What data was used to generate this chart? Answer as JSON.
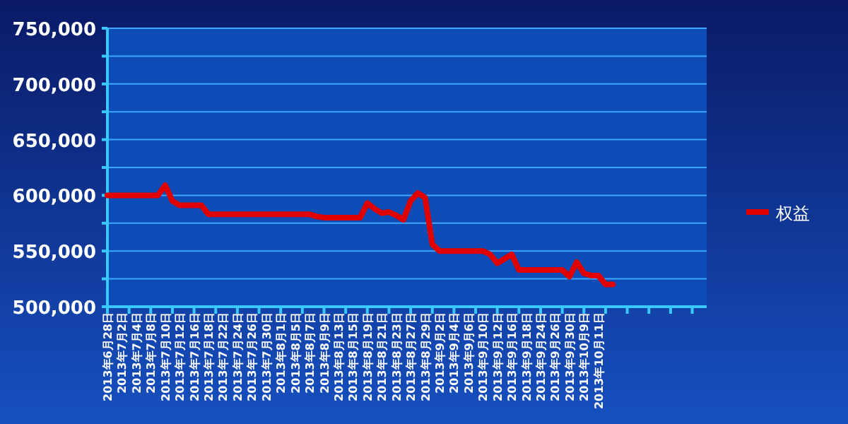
{
  "chart_data": {
    "type": "line",
    "categories": [
      "2013年6月28日",
      null,
      "2013年7月2日",
      null,
      "2013年7月4日",
      null,
      "2013年7月8日",
      null,
      "2013年7月10日",
      null,
      "2013年7月12日",
      null,
      "2013年7月16日",
      null,
      "2013年7月18日",
      null,
      "2013年7月22日",
      null,
      "2013年7月24日",
      null,
      "2013年7月26日",
      null,
      "2013年7月30日",
      null,
      "2013年8月1日",
      null,
      "2013年8月5日",
      null,
      "2013年8月7日",
      null,
      "2013年8月9日",
      null,
      "2013年8月13日",
      null,
      "2013年8月15日",
      null,
      "2013年8月19日",
      null,
      "2013年8月21日",
      null,
      "2013年8月23日",
      null,
      "2013年8月27日",
      null,
      "2013年8月29日",
      null,
      "2013年9月2日",
      null,
      "2013年9月4日",
      null,
      "2013年9月6日",
      null,
      "2013年9月10日",
      null,
      "2013年9月12日",
      null,
      "2013年9月16日",
      null,
      "2013年9月18日",
      null,
      "2013年9月24日",
      null,
      "2013年9月26日",
      null,
      "2013年9月30日",
      null,
      "2013年10月9日",
      null,
      "2013年10月11日",
      null,
      null,
      null,
      null,
      null,
      null,
      null,
      null,
      null,
      null,
      null,
      null,
      null,
      null,
      null
    ],
    "series": [
      {
        "name": "权益",
        "color": "#e00000",
        "values": [
          600000,
          600000,
          600000,
          600000,
          600000,
          600000,
          600000,
          600000,
          609000,
          595000,
          591000,
          591000,
          591000,
          591000,
          583000,
          583000,
          583000,
          583000,
          583000,
          583000,
          583000,
          583000,
          583000,
          583000,
          583000,
          583000,
          583000,
          583000,
          583000,
          581000,
          580000,
          580000,
          580000,
          580000,
          580000,
          580000,
          593000,
          588000,
          584000,
          585000,
          582000,
          578000,
          595000,
          602000,
          598000,
          556000,
          550000,
          550000,
          550000,
          550000,
          550000,
          550000,
          550000,
          547000,
          539000,
          543000,
          547000,
          533000,
          533000,
          533000,
          533000,
          533000,
          533000,
          533000,
          527000,
          540000,
          530000,
          528000,
          528000,
          520000,
          520000,
          null,
          null,
          null,
          null,
          null,
          null,
          null,
          null,
          null,
          null,
          null,
          null,
          null
        ]
      }
    ],
    "ylim": [
      500000,
      750000
    ],
    "yticks": [
      {
        "value": 500000,
        "label": "500,000"
      },
      {
        "value": 525000,
        "label": null
      },
      {
        "value": 550000,
        "label": "550,000"
      },
      {
        "value": 575000,
        "label": null
      },
      {
        "value": 600000,
        "label": "600,000"
      },
      {
        "value": 625000,
        "label": null
      },
      {
        "value": 650000,
        "label": "650,000"
      },
      {
        "value": 675000,
        "label": null
      },
      {
        "value": 700000,
        "label": "700,000"
      },
      {
        "value": 725000,
        "label": null
      },
      {
        "value": 750000,
        "label": "750,000"
      }
    ],
    "grid": "y",
    "legend": "right",
    "marker": "none",
    "line_style": "solid"
  }
}
